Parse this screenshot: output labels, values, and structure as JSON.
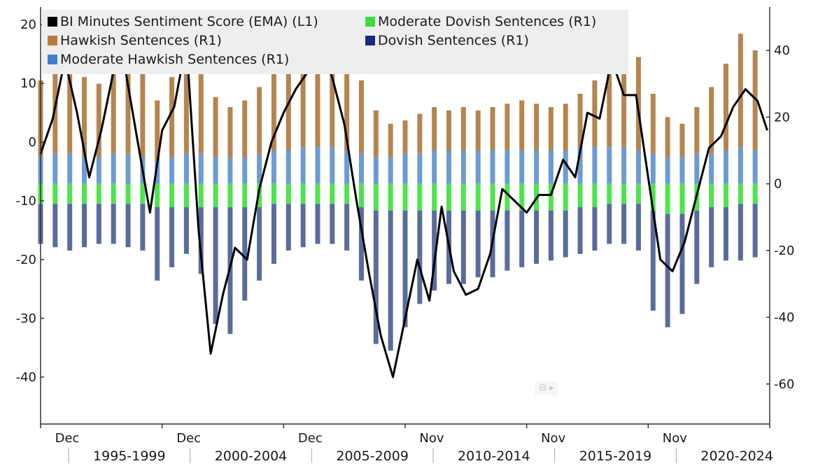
{
  "chart_data": {
    "type": "bar",
    "legend": [
      {
        "label": "BI Minutes Sentiment Score (EMA) (L1)",
        "color": "#000000",
        "axis": "left"
      },
      {
        "label": "Moderate Dovish Sentences (R1)",
        "color": "#3ddc3d",
        "axis": "right"
      },
      {
        "label": "Hawkish Sentences (R1)",
        "color": "#b87d3e",
        "axis": "right"
      },
      {
        "label": "Dovish Sentences (R1)",
        "color": "#1a2a80",
        "axis": "right"
      },
      {
        "label": "Moderate Hawkish Sentences (R1)",
        "color": "#3f7fcf",
        "axis": "right"
      }
    ],
    "legend_position": "top-left",
    "left_axis": {
      "ticks": [
        20,
        10,
        0,
        -10,
        -20,
        -30,
        -40
      ],
      "range": [
        -48,
        23
      ]
    },
    "right_axis": {
      "ticks": [
        40,
        20,
        0,
        -20,
        -40,
        -60
      ],
      "range": [
        -72,
        53
      ]
    },
    "x_month_labels": [
      "Dec",
      "Dec",
      "Dec",
      "Nov",
      "Nov",
      "Nov"
    ],
    "x_period_labels": [
      "1995-1999",
      "2000-2004",
      "2005-2009",
      "2010-2014",
      "2015-2019",
      "2020-2024"
    ],
    "x_range": [
      1995,
      2025
    ],
    "grid": false,
    "series": [
      {
        "name": "Hawkish Sentences (R1)",
        "axis": "right",
        "x": [
          1995.0,
          1995.6,
          1996.2,
          1996.8,
          1997.4,
          1998.0,
          1998.6,
          1999.2,
          1999.8,
          2000.4,
          2001.0,
          2001.6,
          2002.2,
          2002.8,
          2003.4,
          2004.0,
          2004.6,
          2005.2,
          2005.8,
          2006.4,
          2007.0,
          2007.6,
          2008.2,
          2008.8,
          2009.4,
          2010.0,
          2010.6,
          2011.2,
          2011.8,
          2012.4,
          2013.0,
          2013.6,
          2014.2,
          2014.8,
          2015.4,
          2016.0,
          2016.6,
          2017.2,
          2017.8,
          2018.4,
          2019.0,
          2019.6,
          2020.2,
          2020.8,
          2021.4,
          2022.0,
          2022.6,
          2023.2,
          2023.8,
          2024.4
        ],
        "values": [
          23,
          26,
          28,
          24,
          22,
          28,
          30,
          25,
          18,
          24,
          30,
          26,
          18,
          15,
          17,
          20,
          24,
          27,
          31,
          33,
          36,
          30,
          22,
          14,
          10,
          10,
          12,
          13,
          12,
          13,
          12,
          13,
          14,
          15,
          14,
          13,
          14,
          16,
          20,
          24,
          30,
          28,
          18,
          12,
          10,
          14,
          20,
          26,
          34,
          30
        ]
      },
      {
        "name": "Moderate Hawkish Sentences (R1)",
        "axis": "right",
        "x": [
          1995.0,
          1995.6,
          1996.2,
          1996.8,
          1997.4,
          1998.0,
          1998.6,
          1999.2,
          1999.8,
          2000.4,
          2001.0,
          2001.6,
          2002.2,
          2002.8,
          2003.4,
          2004.0,
          2004.6,
          2005.2,
          2005.8,
          2006.4,
          2007.0,
          2007.6,
          2008.2,
          2008.8,
          2009.4,
          2010.0,
          2010.6,
          2011.2,
          2011.8,
          2012.4,
          2013.0,
          2013.6,
          2014.2,
          2014.8,
          2015.4,
          2016.0,
          2016.6,
          2017.2,
          2017.8,
          2018.4,
          2019.0,
          2019.6,
          2020.2,
          2020.8,
          2021.4,
          2022.0,
          2022.6,
          2023.2,
          2023.8,
          2024.4
        ],
        "values": [
          8,
          9,
          9,
          8,
          8,
          9,
          9,
          8,
          7,
          8,
          9,
          9,
          8,
          8,
          8,
          9,
          10,
          10,
          11,
          11,
          11,
          10,
          9,
          8,
          8,
          9,
          9,
          10,
          10,
          10,
          10,
          10,
          10,
          10,
          10,
          10,
          10,
          11,
          11,
          11,
          11,
          10,
          9,
          8,
          8,
          9,
          9,
          10,
          11,
          10
        ]
      },
      {
        "name": "Moderate Dovish Sentences (R1)",
        "axis": "right",
        "x": [
          1995.0,
          1995.6,
          1996.2,
          1996.8,
          1997.4,
          1998.0,
          1998.6,
          1999.2,
          1999.8,
          2000.4,
          2001.0,
          2001.6,
          2002.2,
          2002.8,
          2003.4,
          2004.0,
          2004.6,
          2005.2,
          2005.8,
          2006.4,
          2007.0,
          2007.6,
          2008.2,
          2008.8,
          2009.4,
          2010.0,
          2010.6,
          2011.2,
          2011.8,
          2012.4,
          2013.0,
          2013.6,
          2014.2,
          2014.8,
          2015.4,
          2016.0,
          2016.6,
          2017.2,
          2017.8,
          2018.4,
          2019.0,
          2019.6,
          2020.2,
          2020.8,
          2021.4,
          2022.0,
          2022.6,
          2023.2,
          2023.8,
          2024.4
        ],
        "values": [
          -6,
          -6,
          -6,
          -6,
          -6,
          -6,
          -6,
          -6,
          -7,
          -7,
          -7,
          -7,
          -7,
          -7,
          -7,
          -7,
          -6,
          -6,
          -6,
          -6,
          -6,
          -6,
          -7,
          -8,
          -8,
          -8,
          -8,
          -8,
          -8,
          -8,
          -8,
          -8,
          -8,
          -8,
          -8,
          -8,
          -8,
          -7,
          -7,
          -6,
          -6,
          -6,
          -8,
          -9,
          -9,
          -8,
          -7,
          -7,
          -6,
          -6
        ]
      },
      {
        "name": "Dovish Sentences (R1)",
        "axis": "right",
        "x": [
          1995.0,
          1995.6,
          1996.2,
          1996.8,
          1997.4,
          1998.0,
          1998.6,
          1999.2,
          1999.8,
          2000.4,
          2001.0,
          2001.6,
          2002.2,
          2002.8,
          2003.4,
          2004.0,
          2004.6,
          2005.2,
          2005.8,
          2006.4,
          2007.0,
          2007.6,
          2008.2,
          2008.8,
          2009.4,
          2010.0,
          2010.6,
          2011.2,
          2011.8,
          2012.4,
          2013.0,
          2013.6,
          2014.2,
          2014.8,
          2015.4,
          2016.0,
          2016.6,
          2017.2,
          2017.8,
          2018.4,
          2019.0,
          2019.6,
          2020.2,
          2020.8,
          2021.4,
          2022.0,
          2022.6,
          2023.2,
          2023.8,
          2024.4
        ],
        "values": [
          -12,
          -13,
          -14,
          -13,
          -12,
          -12,
          -13,
          -14,
          -22,
          -18,
          -14,
          -20,
          -35,
          -38,
          -28,
          -22,
          -18,
          -14,
          -13,
          -12,
          -12,
          -14,
          -22,
          -40,
          -42,
          -35,
          -28,
          -24,
          -22,
          -22,
          -20,
          -20,
          -18,
          -17,
          -16,
          -15,
          -14,
          -14,
          -13,
          -12,
          -12,
          -14,
          -30,
          -34,
          -30,
          -22,
          -18,
          -16,
          -17,
          -16
        ]
      },
      {
        "name": "BI Minutes Sentiment Score (EMA) (L1)",
        "type": "line",
        "axis": "left",
        "x": [
          1995.0,
          1995.5,
          1996.0,
          1996.5,
          1997.0,
          1997.5,
          1998.0,
          1998.5,
          1999.0,
          1999.5,
          2000.0,
          2000.5,
          2001.0,
          2001.5,
          2002.0,
          2002.5,
          2003.0,
          2003.5,
          2004.0,
          2004.5,
          2005.0,
          2005.5,
          2006.0,
          2006.5,
          2007.0,
          2007.5,
          2008.0,
          2008.5,
          2009.0,
          2009.5,
          2010.0,
          2010.5,
          2011.0,
          2011.5,
          2012.0,
          2012.5,
          2013.0,
          2013.5,
          2014.0,
          2014.5,
          2015.0,
          2015.5,
          2016.0,
          2016.5,
          2017.0,
          2017.5,
          2018.0,
          2018.5,
          2019.0,
          2019.5,
          2020.0,
          2020.5,
          2021.0,
          2021.5,
          2022.0,
          2022.5,
          2023.0,
          2023.5,
          2024.0,
          2024.5,
          2024.9
        ],
        "values": [
          -2,
          4,
          14,
          5,
          -6,
          2,
          12,
          12,
          0,
          -12,
          2,
          6,
          17,
          -15,
          -36,
          -26,
          -18,
          -20,
          -8,
          0,
          5,
          9,
          12,
          17,
          11,
          3,
          -10,
          -22,
          -33,
          -40,
          -30,
          -20,
          -27,
          -11,
          -22,
          -26,
          -25,
          -19,
          -8,
          -10,
          -12,
          -9,
          -9,
          -3,
          -6,
          5,
          4,
          14,
          8,
          8,
          -6,
          -20,
          -22,
          -17,
          -9,
          -1,
          1,
          6,
          9,
          7,
          2
        ]
      }
    ]
  }
}
